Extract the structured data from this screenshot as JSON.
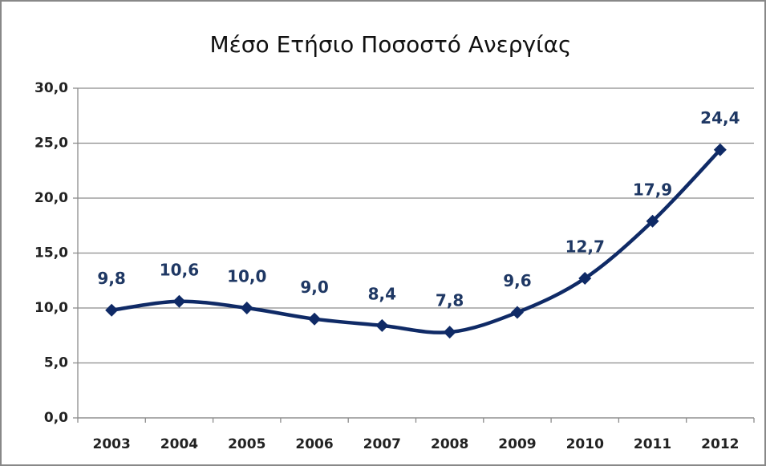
{
  "chart_data": {
    "type": "line",
    "title": "Μέσο Ετήσιο Ποσοστό Ανεργίας",
    "categories": [
      "2003",
      "2004",
      "2005",
      "2006",
      "2007",
      "2008",
      "2009",
      "2010",
      "2011",
      "2012"
    ],
    "series": [
      {
        "color": "#0f2a66",
        "values": [
          9.8,
          10.6,
          10.0,
          9.0,
          8.4,
          7.8,
          9.6,
          12.7,
          17.9,
          24.4
        ],
        "value_labels": [
          "9,8",
          "10,6",
          "10,0",
          "9,0",
          "8,4",
          "7,8",
          "9,6",
          "12,7",
          "17,9",
          "24,4"
        ]
      }
    ],
    "ylim": [
      0,
      30
    ],
    "yticks": [
      {
        "value": 0,
        "label": "0,0"
      },
      {
        "value": 5,
        "label": "5,0"
      },
      {
        "value": 10,
        "label": "10,0"
      },
      {
        "value": 15,
        "label": "15,0"
      },
      {
        "value": 20,
        "label": "20,0"
      },
      {
        "value": 25,
        "label": "25,0"
      },
      {
        "value": 30,
        "label": "30,0"
      }
    ],
    "grid": true
  }
}
